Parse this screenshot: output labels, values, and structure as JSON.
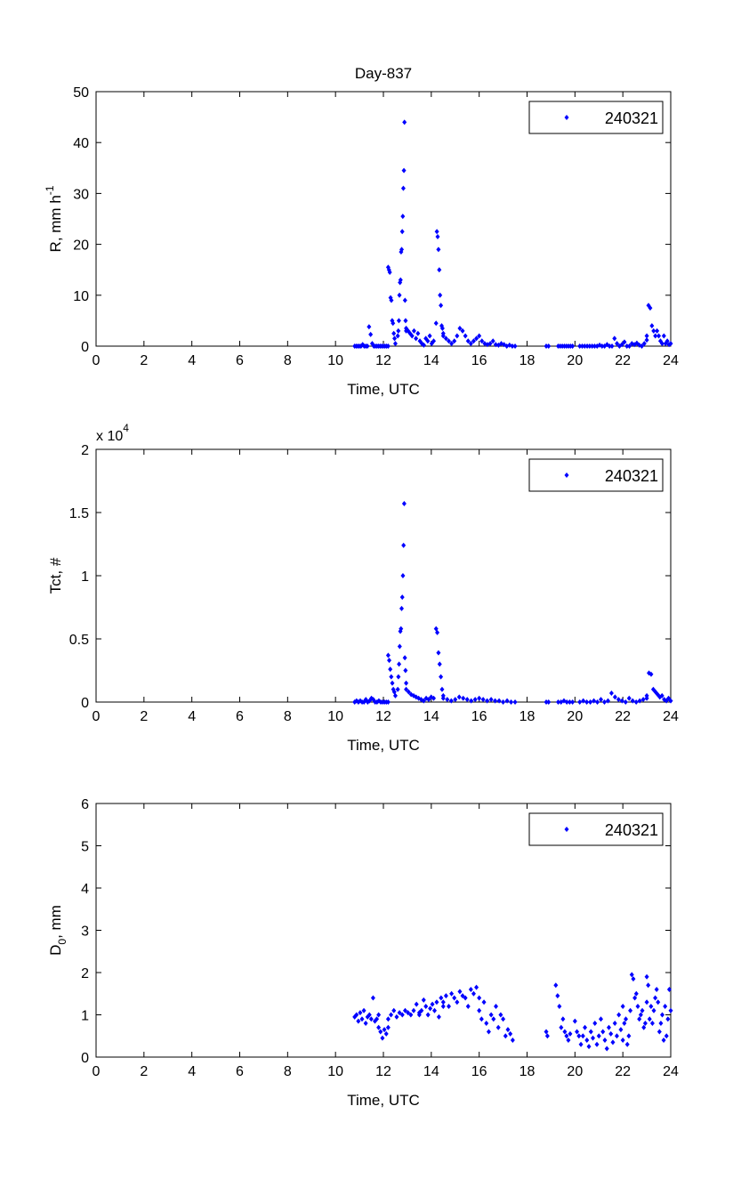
{
  "chart_data": [
    {
      "type": "scatter",
      "title": "Day-837",
      "xlabel": "Time, UTC",
      "ylabel": "R, mm h",
      "ylabel_sup": "-1",
      "xlim": [
        0,
        24
      ],
      "ylim": [
        0,
        50
      ],
      "xticks": [
        0,
        2,
        4,
        6,
        8,
        10,
        12,
        14,
        16,
        18,
        20,
        22,
        24
      ],
      "yticks": [
        0,
        10,
        20,
        30,
        40,
        50
      ],
      "ytick_labels": [
        "0",
        "10",
        "20",
        "30",
        "40",
        "50"
      ],
      "legend": {
        "label": "240321",
        "position": "top-right"
      },
      "color": "#0000ff",
      "segments": [
        {
          "t": [
            10.8,
            12.2
          ],
          "v": [
            0,
            0,
            0,
            0,
            0,
            0.3,
            0,
            0,
            0,
            3.8,
            2.3,
            0.5,
            0,
            0,
            0,
            0,
            0,
            0,
            0,
            0,
            0,
            0
          ]
        },
        {
          "t": [
            12.2,
            12.5
          ],
          "v": [
            15.5,
            15,
            14.5,
            9.5,
            9,
            5,
            4.5,
            2.5,
            1.5,
            0.5
          ]
        },
        {
          "t": [
            12.6,
            12.95
          ],
          "v": [
            2,
            3,
            5,
            10,
            12.5,
            13,
            18.5,
            19,
            22.5,
            25.5,
            31,
            34.5,
            44,
            9,
            5,
            3
          ]
        },
        {
          "t": [
            12.95,
            14.1
          ],
          "v": [
            3.5,
            3,
            2.5,
            2,
            3,
            1.5,
            2.5,
            1,
            0.5,
            0.2,
            1.5,
            1,
            2,
            0.5,
            1
          ]
        },
        {
          "t": [
            14.2,
            14.5
          ],
          "v": [
            4.5,
            22.5,
            21.5,
            19,
            15,
            10,
            8,
            4,
            3.5,
            2.5
          ]
        },
        {
          "t": [
            14.5,
            17.5
          ],
          "v": [
            2,
            1.5,
            1,
            0.5,
            1,
            2,
            3.5,
            3,
            2,
            1,
            0.5,
            1,
            1.5,
            2,
            1,
            0.5,
            0.3,
            0.5,
            1,
            0.3,
            0.2,
            0.5,
            0.3,
            0,
            0.2,
            0,
            0
          ]
        },
        {
          "t": [
            18.8,
            18.9
          ],
          "v": [
            0,
            0
          ]
        },
        {
          "t": [
            19.3,
            19.9
          ],
          "v": [
            0,
            0,
            0,
            0,
            0,
            0,
            0,
            0
          ]
        },
        {
          "t": [
            20.2,
            23.0
          ],
          "v": [
            0,
            0,
            0,
            0,
            0,
            0,
            0,
            0,
            0.2,
            0,
            0,
            0.3,
            0,
            0,
            1.5,
            0.5,
            0,
            0.3,
            0.8,
            0,
            0,
            0.5,
            0.3,
            0.6,
            0.2,
            0,
            0.5,
            1.2
          ]
        },
        {
          "t": [
            23.0,
            24.0
          ],
          "v": [
            2,
            8,
            7.5,
            4,
            3,
            2,
            3,
            2,
            1,
            0.5,
            2,
            0.5,
            1,
            0.3,
            0.5
          ]
        }
      ]
    },
    {
      "type": "scatter",
      "xlabel": "Time, UTC",
      "ylabel": "Tct, #",
      "exponent_label": "x 10",
      "exponent_sup": "4",
      "xlim": [
        0,
        24
      ],
      "ylim": [
        0,
        2
      ],
      "xticks": [
        0,
        2,
        4,
        6,
        8,
        10,
        12,
        14,
        16,
        18,
        20,
        22,
        24
      ],
      "yticks": [
        0,
        0.5,
        1,
        1.5,
        2
      ],
      "ytick_labels": [
        "0",
        "0.5",
        "1",
        "1.5",
        "2"
      ],
      "legend": {
        "label": "240321",
        "position": "top-right"
      },
      "color": "#0000ff",
      "segments": [
        {
          "t": [
            10.8,
            12.2
          ],
          "v": [
            0,
            0.01,
            0,
            0.01,
            0,
            0,
            0.02,
            0,
            0.01,
            0.03,
            0.02,
            0,
            0,
            0.01,
            0,
            0,
            0,
            0,
            0
          ]
        },
        {
          "t": [
            12.2,
            12.5
          ],
          "v": [
            0.37,
            0.33,
            0.26,
            0.2,
            0.15,
            0.1,
            0.08,
            0.05
          ]
        },
        {
          "t": [
            12.6,
            12.95
          ],
          "v": [
            0.1,
            0.2,
            0.3,
            0.44,
            0.56,
            0.58,
            0.74,
            0.83,
            1.0,
            1.24,
            1.57,
            0.35,
            0.25,
            0.15
          ]
        },
        {
          "t": [
            12.95,
            14.1
          ],
          "v": [
            0.1,
            0.08,
            0.06,
            0.05,
            0.04,
            0.03,
            0.02,
            0.01,
            0.03,
            0.02,
            0.04,
            0.03
          ]
        },
        {
          "t": [
            14.2,
            14.5
          ],
          "v": [
            0.58,
            0.55,
            0.39,
            0.3,
            0.2,
            0.1,
            0.05
          ]
        },
        {
          "t": [
            14.5,
            17.5
          ],
          "v": [
            0.03,
            0.02,
            0.01,
            0.02,
            0.04,
            0.03,
            0.02,
            0.01,
            0.02,
            0.03,
            0.02,
            0.01,
            0.02,
            0.01,
            0.01,
            0,
            0.01,
            0,
            0
          ]
        },
        {
          "t": [
            18.8,
            18.9
          ],
          "v": [
            0,
            0
          ]
        },
        {
          "t": [
            19.3,
            19.9
          ],
          "v": [
            0,
            0,
            0.01,
            0,
            0,
            0
          ]
        },
        {
          "t": [
            20.2,
            23.0
          ],
          "v": [
            0,
            0.01,
            0,
            0,
            0.01,
            0,
            0.02,
            0,
            0.01,
            0.07,
            0.04,
            0.02,
            0.01,
            0,
            0.03,
            0.01,
            0,
            0.01,
            0.02,
            0.03
          ]
        },
        {
          "t": [
            23.0,
            24.0
          ],
          "v": [
            0.05,
            0.23,
            0.22,
            0.1,
            0.08,
            0.06,
            0.04,
            0.05,
            0.02,
            0.01,
            0.03,
            0.01
          ]
        }
      ]
    },
    {
      "type": "scatter",
      "xlabel": "Time, UTC",
      "ylabel": "D",
      "ylabel_sub": "0",
      "ylabel_suffix": ", mm",
      "xlim": [
        0,
        24
      ],
      "ylim": [
        0,
        6
      ],
      "xticks": [
        0,
        2,
        4,
        6,
        8,
        10,
        12,
        14,
        16,
        18,
        20,
        22,
        24
      ],
      "yticks": [
        0,
        1,
        2,
        3,
        4,
        5,
        6
      ],
      "ytick_labels": [
        "0",
        "1",
        "2",
        "3",
        "4",
        "5",
        "6"
      ],
      "legend": {
        "label": "240321",
        "position": "top-right"
      },
      "color": "#0000ff",
      "segments": [
        {
          "t": [
            10.8,
            11.8
          ],
          "v": [
            0.95,
            1.0,
            0.85,
            1.05,
            0.9,
            1.1,
            0.8,
            0.95,
            1.0,
            0.9,
            1.4,
            0.85,
            0.9,
            1.0
          ]
        },
        {
          "t": [
            11.8,
            12.2
          ],
          "v": [
            0.7,
            0.6,
            0.45,
            0.65,
            0.55,
            0.7
          ]
        },
        {
          "t": [
            12.2,
            13.5
          ],
          "v": [
            0.9,
            1.0,
            1.1,
            0.95,
            1.05,
            1.0,
            1.1,
            1.05,
            1.0,
            1.1,
            1.25,
            1.0
          ]
        },
        {
          "t": [
            13.5,
            14.5
          ],
          "v": [
            1.05,
            1.1,
            1.35,
            1.2,
            1.0,
            1.15,
            1.25,
            1.1,
            1.3,
            0.95,
            1.4,
            1.2
          ]
        },
        {
          "t": [
            14.5,
            16.0
          ],
          "v": [
            1.3,
            1.45,
            1.2,
            1.5,
            1.4,
            1.3,
            1.55,
            1.45,
            1.4,
            1.2,
            1.6,
            1.5,
            1.65,
            1.4
          ]
        },
        {
          "t": [
            16.0,
            17.4
          ],
          "v": [
            1.1,
            0.9,
            1.3,
            0.8,
            0.6,
            1.0,
            0.9,
            1.2,
            0.7,
            1.0,
            0.9,
            0.5,
            0.65,
            0.55,
            0.4
          ]
        },
        {
          "t": [
            18.8,
            18.85
          ],
          "v": [
            0.6,
            0.5
          ]
        },
        {
          "t": [
            19.2,
            19.8
          ],
          "v": [
            1.7,
            1.45,
            1.2,
            0.7,
            0.9,
            0.6,
            0.5,
            0.4,
            0.55
          ]
        },
        {
          "t": [
            20.0,
            22.0
          ],
          "v": [
            0.85,
            0.6,
            0.5,
            0.3,
            0.5,
            0.7,
            0.4,
            0.25,
            0.6,
            0.45,
            0.8,
            0.3,
            0.5,
            0.9,
            0.6,
            0.4,
            0.2,
            0.7,
            0.55,
            0.35,
            0.8,
            0.5,
            1.0,
            0.65,
            0.4
          ]
        },
        {
          "t": [
            22.0,
            23.0
          ],
          "v": [
            1.2,
            0.8,
            0.9,
            0.3,
            0.5,
            1.1,
            1.95,
            1.85,
            1.4,
            1.5,
            1.2,
            0.9,
            1.0,
            1.1,
            0.7,
            0.8,
            1.3
          ]
        },
        {
          "t": [
            23.0,
            24.0
          ],
          "v": [
            1.9,
            1.7,
            0.9,
            1.2,
            0.8,
            1.1,
            1.4,
            1.6,
            1.3,
            0.6,
            0.8,
            1.0,
            0.4,
            1.2,
            0.5,
            0.9,
            1.6,
            1.1
          ]
        }
      ]
    }
  ]
}
